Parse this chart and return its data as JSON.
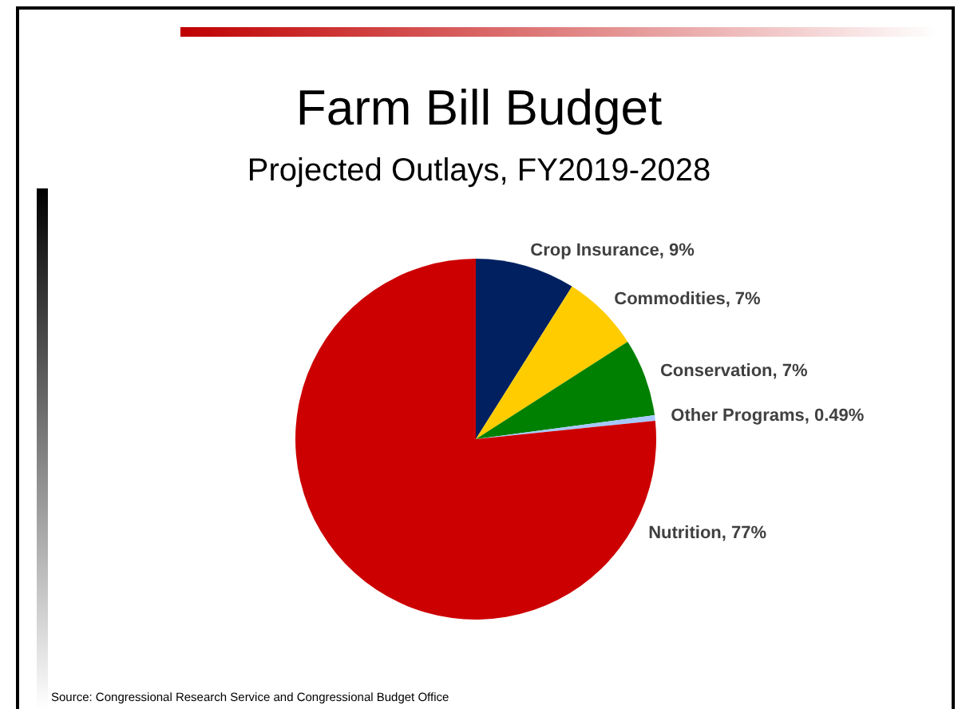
{
  "chart_data": {
    "type": "pie",
    "title": "Farm Bill Budget",
    "subtitle": "Projected Outlays, FY2019-2028",
    "categories": [
      "Crop Insurance",
      "Commodities",
      "Conservation",
      "Other Programs",
      "Nutrition"
    ],
    "values": [
      9,
      7,
      7,
      0.49,
      77
    ],
    "colors": [
      "#002060",
      "#ffcc00",
      "#008000",
      "#a6c8ff",
      "#cc0000"
    ],
    "value_labels": [
      "9%",
      "7%",
      "7%",
      "0.49%",
      "77%"
    ],
    "annotations": [
      "Source: Congressional Research Service and Congressional Budget Office"
    ],
    "legend": false
  }
}
